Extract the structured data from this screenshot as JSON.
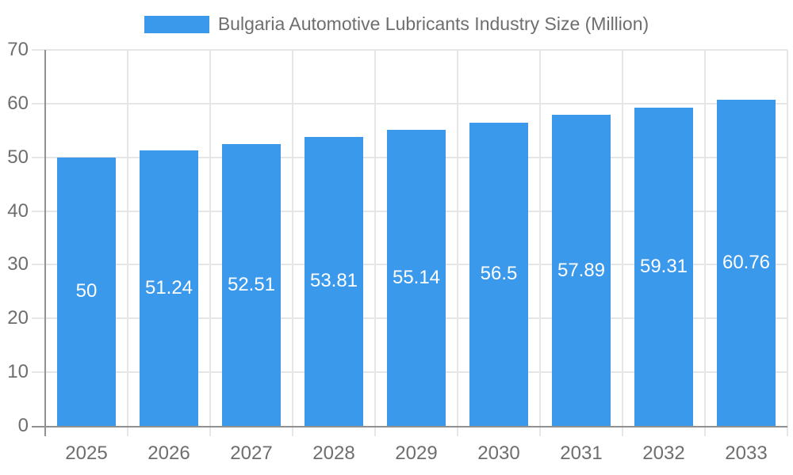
{
  "chart_data": {
    "type": "bar",
    "title": "Bulgaria Automotive Lubricants Industry Size (Million)",
    "legend_position": "top",
    "categories": [
      "2025",
      "2026",
      "2027",
      "2028",
      "2029",
      "2030",
      "2031",
      "2032",
      "2033"
    ],
    "values": [
      50,
      51.24,
      52.51,
      53.81,
      55.14,
      56.5,
      57.89,
      59.31,
      60.76
    ],
    "value_labels": [
      "50",
      "51.24",
      "52.51",
      "53.81",
      "55.14",
      "56.5",
      "57.89",
      "59.31",
      "60.76"
    ],
    "xlabel": "",
    "ylabel": "",
    "ylim": [
      0,
      70
    ],
    "yticks": [
      0,
      10,
      20,
      30,
      40,
      50,
      60,
      70
    ],
    "grid": true,
    "colors": {
      "bar": "#3B99EC",
      "bar_label": "#FFFFFF",
      "axis_text": "#6E6E6E",
      "grid_line": "#E6E6E6",
      "axis_line": "#919191",
      "background": "#FFFFFF"
    }
  }
}
